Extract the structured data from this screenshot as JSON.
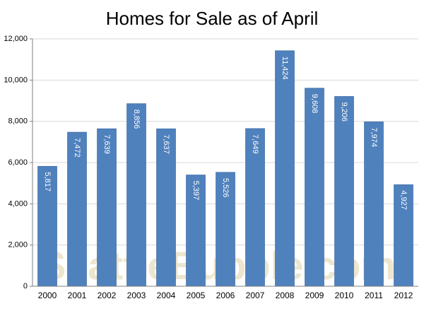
{
  "chart_data": {
    "type": "bar",
    "title": "Homes for Sale as of April",
    "xlabel": "",
    "ylabel": "",
    "categories": [
      "2000",
      "2001",
      "2002",
      "2003",
      "2004",
      "2005",
      "2006",
      "2007",
      "2008",
      "2009",
      "2010",
      "2011",
      "2012"
    ],
    "values": [
      5817,
      7472,
      7639,
      8856,
      7637,
      5397,
      5526,
      7649,
      11424,
      9608,
      9206,
      7974,
      4927
    ],
    "value_labels": [
      "5,817",
      "7,472",
      "7,639",
      "8,856",
      "7,637",
      "5,397",
      "5,526",
      "7,649",
      "11,424",
      "9,608",
      "9,206",
      "7,974",
      "4,927"
    ],
    "ylim": [
      0,
      12000
    ],
    "yticks": [
      0,
      2000,
      4000,
      6000,
      8000,
      10000,
      12000
    ],
    "ytick_labels": [
      "0",
      "2,000",
      "4,000",
      "6,000",
      "8,000",
      "10,000",
      "12,000"
    ],
    "grid": true,
    "legend": "none",
    "watermark": "SeattleBubble.com",
    "colors": {
      "bar": "#4f81bd",
      "bar_edge": "#3f6ea8",
      "grid": "#d9d9d9",
      "axis": "#7f7f7f",
      "text": "#000000",
      "bar_label": "#ffffff",
      "watermark": "#ece6cf"
    }
  }
}
